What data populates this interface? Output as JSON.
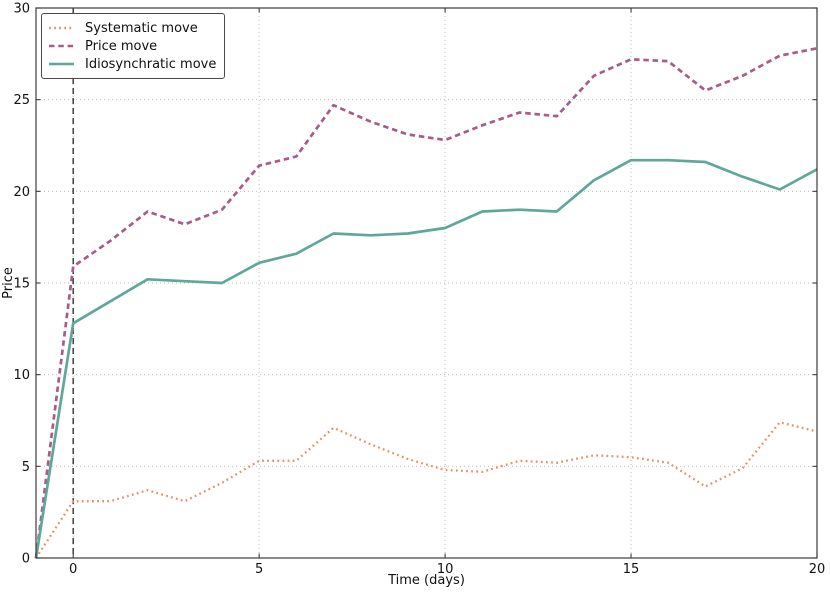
{
  "figure": {
    "axes": {
      "xticks": [
        0,
        5,
        10,
        15,
        20
      ],
      "yticks": [
        0,
        5,
        10,
        15,
        20,
        25,
        30
      ],
      "grid": true,
      "grid_color": "#bfbfbf",
      "spine_color": "#3c3c3c",
      "tick_label_color": "#111111"
    }
  },
  "chart_data": {
    "type": "line",
    "title": "",
    "xlabel": "Time (days)",
    "ylabel": "Price",
    "xlim": [
      -1,
      20
    ],
    "ylim": [
      0,
      30
    ],
    "grid": "dotted",
    "legend_position": "upper-left",
    "x": [
      -1,
      0,
      1,
      2,
      3,
      4,
      5,
      6,
      7,
      8,
      9,
      10,
      11,
      12,
      13,
      14,
      15,
      16,
      17,
      18,
      19,
      20
    ],
    "series": [
      {
        "name": "Systematic move",
        "color": "#e89169",
        "style": "dotted",
        "width": 2.3,
        "values": [
          0,
          3.1,
          3.1,
          3.7,
          3.1,
          4.1,
          5.3,
          5.3,
          7.1,
          6.2,
          5.4,
          4.8,
          4.7,
          5.3,
          5.2,
          5.6,
          5.5,
          5.2,
          3.9,
          4.9,
          7.4,
          6.9
        ]
      },
      {
        "name": "Price move",
        "color": "#a85c87",
        "style": "dashed",
        "width": 2.7,
        "values": [
          0,
          15.9,
          17.3,
          18.9,
          18.2,
          19.0,
          21.4,
          21.9,
          24.7,
          23.8,
          23.1,
          22.8,
          23.6,
          24.3,
          24.1,
          26.3,
          27.2,
          27.1,
          25.5,
          26.3,
          27.4,
          27.8
        ]
      },
      {
        "name": "Idiosynchratic move",
        "color": "#5fa79a",
        "style": "solid",
        "width": 2.7,
        "values": [
          0,
          12.8,
          14.0,
          15.2,
          15.1,
          15.0,
          16.1,
          16.6,
          17.7,
          17.6,
          17.7,
          18.0,
          18.9,
          19.0,
          18.9,
          20.6,
          21.7,
          21.7,
          21.6,
          20.8,
          20.1,
          21.2
        ]
      }
    ],
    "annotations": [
      {
        "type": "vline",
        "x": 0,
        "style": "dashed",
        "color": "#333333"
      }
    ]
  }
}
